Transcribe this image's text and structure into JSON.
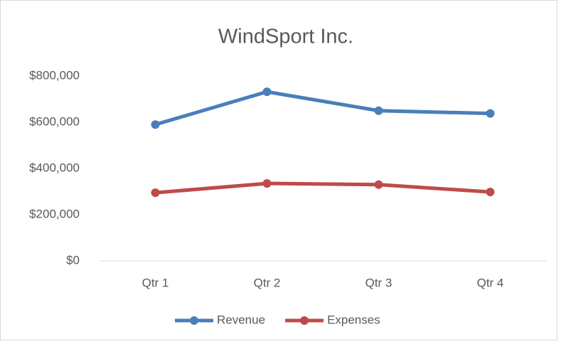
{
  "chart_data": {
    "type": "line",
    "title": "WindSport Inc.",
    "categories": [
      "Qtr 1",
      "Qtr 2",
      "Qtr 3",
      "Qtr 4"
    ],
    "series": [
      {
        "name": "Revenue",
        "color": "#4a7ebb",
        "values": [
          590000,
          732000,
          650000,
          638000
        ]
      },
      {
        "name": "Expenses",
        "color": "#be4b48",
        "values": [
          295000,
          335000,
          330000,
          298000
        ]
      }
    ],
    "ylim": [
      0,
      800000
    ],
    "yticks": [
      {
        "value": 0,
        "label": "$0"
      },
      {
        "value": 200000,
        "label": "$200,000"
      },
      {
        "value": 400000,
        "label": "$400,000"
      },
      {
        "value": 600000,
        "label": "$600,000"
      },
      {
        "value": 800000,
        "label": "$800,000"
      }
    ],
    "grid": false,
    "legend": "bottom"
  }
}
